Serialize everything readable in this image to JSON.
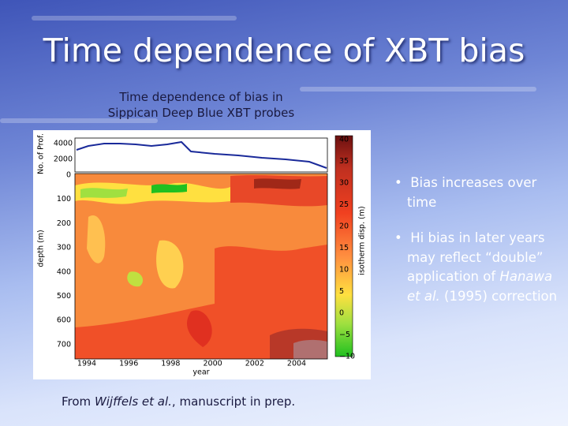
{
  "title": "Time dependence of XBT bias",
  "figure": {
    "caption": [
      "Time dependence of bias in",
      "Sippican Deep Blue XBT probes"
    ],
    "top_ylabel": "No. of Prof.",
    "top_yticks": [
      "4000",
      "2000"
    ],
    "ylabel": "depth (m)",
    "yticks": [
      "0",
      "100",
      "200",
      "300",
      "400",
      "500",
      "600",
      "700"
    ],
    "xticks": [
      "1994",
      "1996",
      "1998",
      "2000",
      "2002",
      "2004"
    ],
    "xlabel": "year",
    "colorbar_label": "isotherm disp. (m)",
    "colorbar_ticks": [
      "40",
      "35",
      "30",
      "25",
      "20",
      "15",
      "10",
      "5",
      "0",
      "−5",
      "−10"
    ]
  },
  "bullets": {
    "first": "Bias increases over time",
    "second": {
      "before": "Hi bias in later years may reflect “double” application of ",
      "italic": "Hanawa et al.",
      "after": " (1995) correction"
    }
  },
  "source": {
    "before": "From ",
    "italic": "Wijffels et al.",
    "after": ", manuscript in prep."
  }
}
